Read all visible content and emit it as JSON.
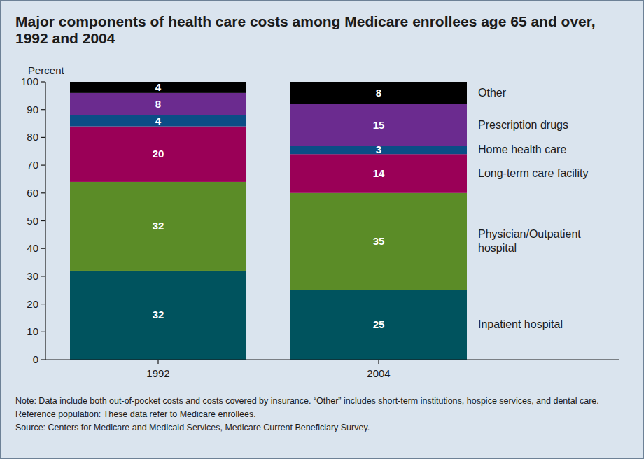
{
  "chart_data": {
    "type": "bar",
    "stacked": true,
    "title": "Major components of health care costs among Medicare enrollees age 65 and over, 1992 and 2004",
    "ylabel": "Percent",
    "categories": [
      "1992",
      "2004"
    ],
    "series": [
      {
        "name": "Inpatient hospital",
        "color": "#00535e",
        "values": [
          32,
          25
        ]
      },
      {
        "name": "Physician/Outpatient hospital",
        "color": "#5b8c27",
        "values": [
          32,
          35
        ]
      },
      {
        "name": "Long-term care facility",
        "color": "#9a0057",
        "values": [
          20,
          14
        ]
      },
      {
        "name": "Home health care",
        "color": "#0b4d86",
        "values": [
          4,
          3
        ]
      },
      {
        "name": "Prescription drugs",
        "color": "#6b2b8f",
        "values": [
          8,
          15
        ]
      },
      {
        "name": "Other",
        "color": "#000000",
        "values": [
          4,
          8
        ]
      }
    ],
    "ylim": [
      0,
      100
    ],
    "yticks": [
      0,
      10,
      20,
      30,
      40,
      50,
      60,
      70,
      80,
      90,
      100
    ],
    "grid": false,
    "legend": "right",
    "data_labels": true,
    "annotations": [
      "Note: Data include both out-of-pocket costs and costs covered by insurance. “Other” includes short-term institutions, hospice services, and dental care.",
      "Reference population: These data refer to Medicare enrollees.",
      "Source:  Centers for Medicare and Medicaid Services, Medicare Current Beneficiary Survey."
    ]
  }
}
